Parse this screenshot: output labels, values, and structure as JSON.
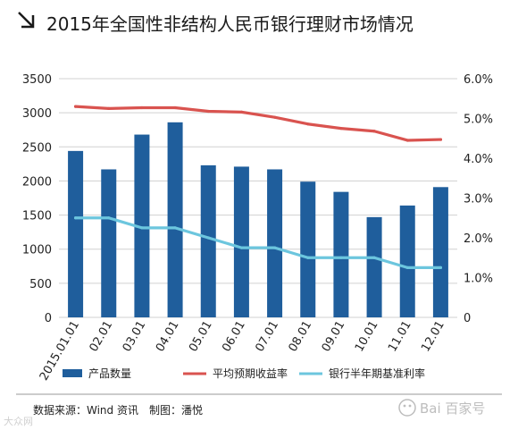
{
  "chart_data": {
    "type": "bar",
    "title": "2015年全国性非结构人民币银行理财市场情况",
    "categories": [
      "2015.01.01",
      "02.01",
      "03.01",
      "04.01",
      "05.01",
      "06.01",
      "07.01",
      "08.01",
      "09.01",
      "10.01",
      "11.01",
      "12.01"
    ],
    "y_left": {
      "ticks": [
        "0",
        "500",
        "1000",
        "1500",
        "2000",
        "2500",
        "3000",
        "3500"
      ],
      "ylim": [
        0,
        3500
      ]
    },
    "y_right": {
      "ticks": [
        "0",
        "1.0%",
        "2.0%",
        "3.0%",
        "4.0%",
        "5.0%",
        "6.0%"
      ],
      "ylim": [
        0,
        6.0
      ]
    },
    "grid": true,
    "legend_position": "bottom",
    "series": [
      {
        "name": "产品数量",
        "type": "bar",
        "axis": "left",
        "color": "#1f5e9c",
        "values": [
          2440,
          2170,
          2680,
          2860,
          2230,
          2210,
          2170,
          1990,
          1840,
          1470,
          1640,
          1910
        ]
      },
      {
        "name": "平均预期收益率",
        "type": "line",
        "axis": "right",
        "color": "#d9534f",
        "values": [
          5.3,
          5.25,
          5.27,
          5.27,
          5.18,
          5.16,
          5.03,
          4.86,
          4.75,
          4.68,
          4.45,
          4.47
        ]
      },
      {
        "name": "银行半年期基准利率",
        "type": "line",
        "axis": "right",
        "color": "#6cc6de",
        "values": [
          2.5,
          2.5,
          2.25,
          2.25,
          2.0,
          1.75,
          1.75,
          1.5,
          1.5,
          1.5,
          1.25,
          1.25
        ]
      }
    ]
  },
  "footer": {
    "source": "数据来源：Wind 资讯",
    "credit": "制图：潘悦"
  },
  "watermark": {
    "corner_logo": "大众网",
    "logo_text": "Bai 百家号"
  }
}
